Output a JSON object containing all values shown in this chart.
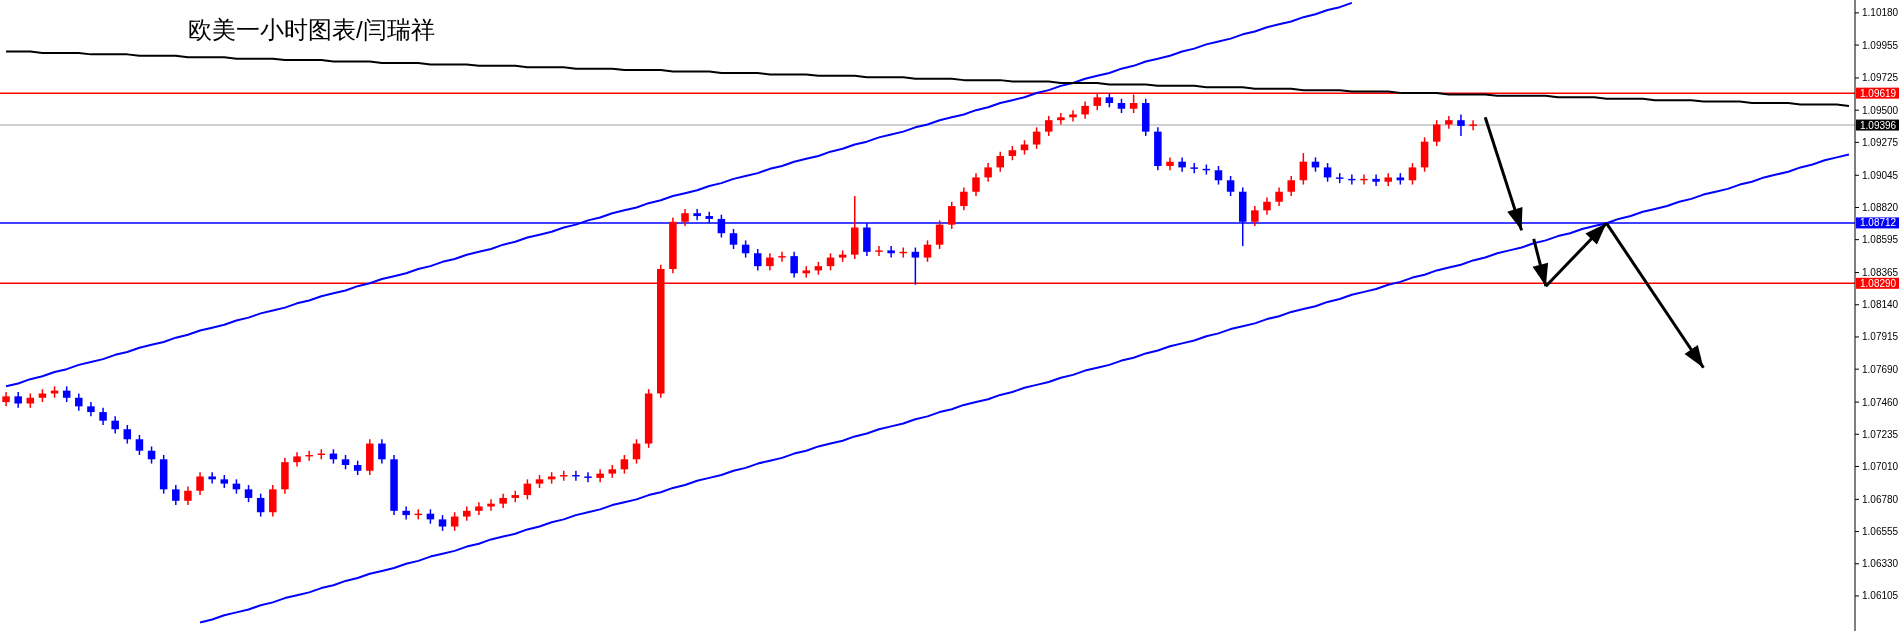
{
  "chart_data": {
    "type": "candlestick",
    "title": "欧美一小时图表/闫瑞祥",
    "categories": [
      null,
      null,
      null,
      null,
      null,
      null,
      null,
      null,
      null,
      null,
      null,
      null,
      null,
      null,
      null,
      null,
      null,
      null,
      null,
      null,
      null,
      null,
      null,
      null,
      null,
      null,
      null,
      null,
      null,
      null,
      null,
      null,
      null,
      null,
      null,
      null,
      null,
      null,
      null,
      null,
      null,
      null,
      null,
      null,
      null,
      null,
      null,
      null,
      null,
      null,
      null,
      null,
      null,
      null,
      null,
      null,
      null,
      null,
      null,
      null,
      null,
      null,
      null,
      null,
      null,
      null,
      null,
      null,
      null,
      null,
      null,
      null,
      null,
      null,
      null,
      null,
      null,
      null,
      null,
      null,
      null,
      null,
      null,
      null,
      null,
      null,
      null,
      null,
      null,
      null,
      null,
      null,
      null,
      null,
      null,
      null,
      null,
      null,
      null,
      null,
      null,
      null,
      null,
      null,
      null,
      null,
      null,
      null,
      null,
      null,
      null,
      null,
      null,
      null,
      null,
      null,
      null,
      null,
      null,
      null,
      null,
      null,
      null,
      null,
      null,
      null,
      null,
      null,
      null,
      null,
      null,
      null,
      null,
      null,
      null,
      null,
      null,
      null,
      null,
      null,
      null,
      null,
      null,
      null,
      null,
      null,
      null,
      null,
      null,
      null,
      null,
      null,
      null
    ],
    "ohlc": [
      [
        1.0746,
        1.0753,
        1.0743,
        1.075
      ],
      [
        1.075,
        1.0753,
        1.0742,
        1.0745
      ],
      [
        1.0745,
        1.0752,
        1.0742,
        1.0749
      ],
      [
        1.0749,
        1.0755,
        1.0746,
        1.0752
      ],
      [
        1.0752,
        1.0757,
        1.0749,
        1.0754
      ],
      [
        1.0754,
        1.0757,
        1.0746,
        1.0749
      ],
      [
        1.0749,
        1.0752,
        1.074,
        1.0743
      ],
      [
        1.0743,
        1.0746,
        1.0736,
        1.0739
      ],
      [
        1.0739,
        1.0742,
        1.073,
        1.0733
      ],
      [
        1.0733,
        1.0736,
        1.0724,
        1.0727
      ],
      [
        1.0727,
        1.073,
        1.0717,
        1.072
      ],
      [
        1.072,
        1.0723,
        1.0709,
        1.0712
      ],
      [
        1.0712,
        1.0715,
        1.0703,
        1.0706
      ],
      [
        1.0706,
        1.0709,
        1.0682,
        1.0685
      ],
      [
        1.0685,
        1.0688,
        1.0674,
        1.0677
      ],
      [
        1.0677,
        1.0687,
        1.0674,
        1.0684
      ],
      [
        1.0684,
        1.0697,
        1.0681,
        1.0694
      ],
      [
        1.0694,
        1.0697,
        1.0689,
        1.0692
      ],
      [
        1.0692,
        1.0695,
        1.0686,
        1.0689
      ],
      [
        1.0689,
        1.0692,
        1.0682,
        1.0685
      ],
      [
        1.0685,
        1.0688,
        1.0676,
        1.0679
      ],
      [
        1.0679,
        1.0682,
        1.0666,
        1.0669
      ],
      [
        1.0669,
        1.0688,
        1.0666,
        1.0685
      ],
      [
        1.0685,
        1.0707,
        1.0682,
        1.0704
      ],
      [
        1.0704,
        1.0711,
        1.0701,
        1.0708
      ],
      [
        1.0708,
        1.0712,
        1.0705,
        1.0709
      ],
      [
        1.0709,
        1.0713,
        1.0706,
        1.071
      ],
      [
        1.071,
        1.0713,
        1.0703,
        1.0706
      ],
      [
        1.0706,
        1.0709,
        1.0699,
        1.0702
      ],
      [
        1.0702,
        1.0705,
        1.0695,
        1.0698
      ],
      [
        1.0698,
        1.072,
        1.0695,
        1.0717
      ],
      [
        1.0717,
        1.072,
        1.0703,
        1.0706
      ],
      [
        1.0706,
        1.0709,
        1.0667,
        1.067
      ],
      [
        1.067,
        1.0673,
        1.0664,
        1.0667
      ],
      [
        1.0667,
        1.0671,
        1.0664,
        1.0668
      ],
      [
        1.0668,
        1.0671,
        1.0661,
        1.0664
      ],
      [
        1.0664,
        1.0667,
        1.0656,
        1.0659
      ],
      [
        1.0659,
        1.0669,
        1.0656,
        1.0666
      ],
      [
        1.0666,
        1.0673,
        1.0663,
        1.067
      ],
      [
        1.067,
        1.0676,
        1.0667,
        1.0673
      ],
      [
        1.0673,
        1.0678,
        1.067,
        1.0675
      ],
      [
        1.0675,
        1.0682,
        1.0672,
        1.0679
      ],
      [
        1.0679,
        1.0684,
        1.0676,
        1.0681
      ],
      [
        1.0681,
        1.0692,
        1.0678,
        1.0689
      ],
      [
        1.0689,
        1.0695,
        1.0686,
        1.0692
      ],
      [
        1.0692,
        1.0697,
        1.0689,
        1.0694
      ],
      [
        1.0694,
        1.0698,
        1.0691,
        1.0695
      ],
      [
        1.0695,
        1.0698,
        1.0691,
        1.0694
      ],
      [
        1.0694,
        1.0697,
        1.069,
        1.0693
      ],
      [
        1.0693,
        1.0699,
        1.069,
        1.0696
      ],
      [
        1.0696,
        1.0702,
        1.0693,
        1.0699
      ],
      [
        1.0699,
        1.0709,
        1.0696,
        1.0706
      ],
      [
        1.0706,
        1.072,
        1.0703,
        1.0717
      ],
      [
        1.0717,
        1.0755,
        1.0714,
        1.0752
      ],
      [
        1.0752,
        1.0842,
        1.0749,
        1.0839
      ],
      [
        1.0839,
        1.0875,
        1.0836,
        1.0872
      ],
      [
        1.0872,
        1.0881,
        1.0869,
        1.0878
      ],
      [
        1.0878,
        1.0881,
        1.0873,
        1.0876
      ],
      [
        1.0876,
        1.0879,
        1.0871,
        1.0874
      ],
      [
        1.0874,
        1.0877,
        1.0861,
        1.0864
      ],
      [
        1.0864,
        1.0867,
        1.0853,
        1.0856
      ],
      [
        1.0856,
        1.0859,
        1.0847,
        1.085
      ],
      [
        1.085,
        1.0853,
        1.0838,
        1.0841
      ],
      [
        1.0841,
        1.085,
        1.0838,
        1.0847
      ],
      [
        1.0847,
        1.0851,
        1.0844,
        1.0848
      ],
      [
        1.0848,
        1.0851,
        1.0833,
        1.0836
      ],
      [
        1.0836,
        1.0841,
        1.0833,
        1.0838
      ],
      [
        1.0838,
        1.0844,
        1.0835,
        1.0841
      ],
      [
        1.0841,
        1.085,
        1.0838,
        1.0847
      ],
      [
        1.0847,
        1.0852,
        1.0844,
        1.0849
      ],
      [
        1.0849,
        1.089,
        1.0846,
        1.0868
      ],
      [
        1.0868,
        1.0871,
        1.0848,
        1.0851
      ],
      [
        1.0851,
        1.0855,
        1.0848,
        1.0852
      ],
      [
        1.0852,
        1.0855,
        1.0847,
        1.085
      ],
      [
        1.085,
        1.0854,
        1.0847,
        1.0851
      ],
      [
        1.0851,
        1.0854,
        1.0828,
        1.0847
      ],
      [
        1.0847,
        1.0859,
        1.0844,
        1.0856
      ],
      [
        1.0856,
        1.0873,
        1.0853,
        1.087
      ],
      [
        1.087,
        1.0886,
        1.0867,
        1.0883
      ],
      [
        1.0883,
        1.0896,
        1.088,
        1.0893
      ],
      [
        1.0893,
        1.0906,
        1.089,
        1.0903
      ],
      [
        1.0903,
        1.0913,
        1.09,
        1.091
      ],
      [
        1.091,
        1.0921,
        1.0907,
        1.0918
      ],
      [
        1.0918,
        1.0925,
        1.0915,
        1.0922
      ],
      [
        1.0922,
        1.0929,
        1.0919,
        1.0926
      ],
      [
        1.0926,
        1.0938,
        1.0923,
        1.0935
      ],
      [
        1.0935,
        1.0946,
        1.0932,
        1.0943
      ],
      [
        1.0943,
        1.0948,
        1.094,
        1.0945
      ],
      [
        1.0945,
        1.095,
        1.0942,
        1.0947
      ],
      [
        1.0947,
        1.0956,
        1.0944,
        1.0953
      ],
      [
        1.0953,
        1.0962,
        1.095,
        1.0959
      ],
      [
        1.0959,
        1.0962,
        1.0952,
        1.0955
      ],
      [
        1.0955,
        1.0958,
        1.0948,
        1.0951
      ],
      [
        1.0951,
        1.0961,
        1.0948,
        1.0955
      ],
      [
        1.0955,
        1.0958,
        1.0932,
        1.0935
      ],
      [
        1.0935,
        1.0938,
        1.0908,
        1.0911
      ],
      [
        1.0911,
        1.0917,
        1.0908,
        1.0914
      ],
      [
        1.0914,
        1.0917,
        1.0907,
        1.091
      ],
      [
        1.091,
        1.0913,
        1.0906,
        1.0909
      ],
      [
        1.0909,
        1.0912,
        1.0905,
        1.0908
      ],
      [
        1.0908,
        1.0911,
        1.0898,
        1.0901
      ],
      [
        1.0901,
        1.0904,
        1.089,
        1.0893
      ],
      [
        1.0893,
        1.0896,
        1.0855,
        1.0872
      ],
      [
        1.0872,
        1.0883,
        1.0869,
        1.088
      ],
      [
        1.088,
        1.0889,
        1.0877,
        1.0886
      ],
      [
        1.0886,
        1.0896,
        1.0883,
        1.0893
      ],
      [
        1.0893,
        1.0904,
        1.089,
        1.0901
      ],
      [
        1.0901,
        1.092,
        1.0898,
        1.0914
      ],
      [
        1.0914,
        1.0917,
        1.0907,
        1.091
      ],
      [
        1.091,
        1.0913,
        1.09,
        1.0903
      ],
      [
        1.0903,
        1.0906,
        1.0899,
        1.0902
      ],
      [
        1.0902,
        1.0905,
        1.0898,
        1.0901
      ],
      [
        1.0901,
        1.0905,
        1.0898,
        1.0902
      ],
      [
        1.0902,
        1.0905,
        1.0897,
        1.09
      ],
      [
        1.09,
        1.0906,
        1.0897,
        1.0903
      ],
      [
        1.0903,
        1.0906,
        1.0898,
        1.0901
      ],
      [
        1.0901,
        1.0913,
        1.0898,
        1.091
      ],
      [
        1.091,
        1.0931,
        1.0907,
        1.0928
      ],
      [
        1.0928,
        1.0943,
        1.0925,
        1.094
      ],
      [
        1.094,
        1.0946,
        1.0937,
        1.0943
      ],
      [
        1.0943,
        1.0947,
        1.0932,
        1.0939
      ],
      [
        1.0939,
        1.0943,
        1.0936,
        1.094
      ],
      null,
      null,
      null,
      null,
      null,
      null,
      null,
      null,
      null,
      null,
      null,
      null,
      null,
      null,
      null,
      null,
      null,
      null,
      null,
      null,
      null,
      null,
      null,
      null,
      null,
      null,
      null,
      null,
      null,
      null,
      null
    ],
    "colors": [
      "#ff0000",
      "#0000ff",
      "#ff0000",
      "#ff0000",
      "#ff0000",
      "#0000ff",
      "#0000ff",
      "#0000ff",
      "#0000ff",
      "#0000ff",
      "#0000ff",
      "#0000ff",
      "#0000ff",
      "#0000ff",
      "#0000ff",
      "#ff0000",
      "#ff0000",
      "#0000ff",
      "#0000ff",
      "#0000ff",
      "#0000ff",
      "#0000ff",
      "#ff0000",
      "#ff0000",
      "#ff0000",
      "#ff0000",
      "#ff0000",
      "#0000ff",
      "#0000ff",
      "#0000ff",
      "#ff0000",
      "#0000ff",
      "#0000ff",
      "#0000ff",
      "#ff0000",
      "#0000ff",
      "#0000ff",
      "#ff0000",
      "#ff0000",
      "#ff0000",
      "#ff0000",
      "#ff0000",
      "#ff0000",
      "#ff0000",
      "#ff0000",
      "#ff0000",
      "#ff0000",
      "#0000ff",
      "#0000ff",
      "#ff0000",
      "#ff0000",
      "#ff0000",
      "#ff0000",
      "#ff0000",
      "#ff0000",
      "#ff0000",
      "#ff0000",
      "#0000ff",
      "#0000ff",
      "#0000ff",
      "#0000ff",
      "#0000ff",
      "#0000ff",
      "#ff0000",
      "#ff0000",
      "#0000ff",
      "#ff0000",
      "#ff0000",
      "#ff0000",
      "#ff0000",
      "#ff0000",
      "#0000ff",
      "#ff0000",
      "#0000ff",
      "#ff0000",
      "#0000ff",
      "#ff0000",
      "#ff0000",
      "#ff0000",
      "#ff0000",
      "#ff0000",
      "#ff0000",
      "#ff0000",
      "#ff0000",
      "#ff0000",
      "#ff0000",
      "#ff0000",
      "#ff0000",
      "#ff0000",
      "#ff0000",
      "#ff0000",
      "#0000ff",
      "#0000ff",
      "#ff0000",
      "#0000ff",
      "#0000ff",
      "#ff0000",
      "#0000ff",
      "#0000ff",
      "#0000ff",
      "#0000ff",
      "#0000ff",
      "#0000ff",
      "#ff0000",
      "#ff0000",
      "#ff0000",
      "#ff0000",
      "#ff0000",
      "#0000ff",
      "#0000ff",
      "#0000ff",
      "#0000ff",
      "#ff0000",
      "#0000ff",
      "#ff0000",
      "#0000ff",
      "#ff0000",
      "#ff0000",
      "#ff0000",
      "#ff0000",
      "#0000ff",
      "#ff0000",
      null,
      null,
      null,
      null,
      null,
      null,
      null,
      null,
      null,
      null,
      null,
      null,
      null,
      null,
      null,
      null,
      null,
      null,
      null,
      null,
      null,
      null,
      null,
      null,
      null,
      null,
      null,
      null,
      null,
      null,
      null
    ],
    "series": [
      {
        "type": "line",
        "color": "#0000ff",
        "values": [
          1.0757,
          1.0759,
          1.0762,
          1.0764,
          1.0767,
          1.0769,
          1.0772,
          1.0774,
          1.0776,
          1.0779,
          1.0781,
          1.0784,
          1.0786,
          1.0788,
          1.0791,
          1.0793,
          1.0796,
          1.0798,
          1.08,
          1.0803,
          1.0805,
          1.0808,
          1.081,
          1.0812,
          1.0815,
          1.0817,
          1.082,
          1.0822,
          1.0824,
          1.0827,
          1.0829,
          1.0832,
          1.0834,
          1.0836,
          1.0839,
          1.0841,
          1.0844,
          1.0846,
          1.0849,
          1.0851,
          1.0853,
          1.0856,
          1.0858,
          1.0861,
          1.0863,
          1.0865,
          1.0868,
          1.087,
          1.0873,
          1.0875,
          1.0878,
          1.088,
          1.0882,
          1.0885,
          1.0887,
          1.089,
          1.0892,
          1.0894,
          1.0897,
          1.0899,
          1.0902,
          1.0904,
          1.0906,
          1.0909,
          1.0911,
          1.0914,
          1.0916,
          1.0918,
          1.0921,
          1.0923,
          1.0926,
          1.0928,
          1.0931,
          1.0933,
          1.0935,
          1.0938,
          1.094,
          1.0943,
          1.0945,
          1.0947,
          1.095,
          1.0952,
          1.0955,
          1.0957,
          1.0959,
          1.0962,
          1.0964,
          1.0967,
          1.0969,
          1.0972,
          1.0974,
          1.0976,
          1.0979,
          1.0981,
          1.0984,
          1.0986,
          1.0988,
          1.0991,
          1.0993,
          1.0996,
          1.0998,
          1.1,
          1.1003,
          1.1005,
          1.1008,
          1.101,
          1.1012,
          1.1015,
          1.1017,
          1.102,
          1.1022,
          1.1025,
          null,
          null,
          null,
          null,
          null,
          null,
          null,
          null,
          null,
          null,
          null,
          null,
          null,
          null,
          null,
          null,
          null,
          null,
          null,
          null,
          null,
          null,
          null,
          null,
          null,
          null,
          null,
          null,
          null,
          null,
          null,
          null,
          null,
          null,
          null,
          null,
          null,
          null,
          null,
          null,
          null
        ]
      },
      {
        "type": "line",
        "color": "#0000ff",
        "values": [
          null,
          null,
          null,
          null,
          null,
          null,
          null,
          null,
          null,
          null,
          null,
          null,
          null,
          null,
          null,
          null,
          1.0592,
          1.0594,
          1.0597,
          1.0599,
          1.0601,
          1.0604,
          1.0606,
          1.0609,
          1.0611,
          1.0613,
          1.0616,
          1.0618,
          1.0621,
          1.0623,
          1.0626,
          1.0628,
          1.063,
          1.0633,
          1.0635,
          1.0638,
          1.064,
          1.0642,
          1.0645,
          1.0647,
          1.065,
          1.0652,
          1.0654,
          1.0657,
          1.0659,
          1.0662,
          1.0664,
          1.0667,
          1.0669,
          1.0671,
          1.0674,
          1.0676,
          1.0678,
          1.0681,
          1.0683,
          1.0686,
          1.0688,
          1.0691,
          1.0693,
          1.0695,
          1.0698,
          1.07,
          1.0703,
          1.0705,
          1.0707,
          1.071,
          1.0712,
          1.0715,
          1.0717,
          1.0719,
          1.0722,
          1.0724,
          1.0727,
          1.0729,
          1.0731,
          1.0734,
          1.0736,
          1.0739,
          1.0741,
          1.0744,
          1.0746,
          1.0748,
          1.0751,
          1.0753,
          1.0756,
          1.0758,
          1.076,
          1.0763,
          1.0765,
          1.0768,
          1.077,
          1.0772,
          1.0775,
          1.0777,
          1.078,
          1.0782,
          1.0785,
          1.0787,
          1.0789,
          1.0792,
          1.0794,
          1.0797,
          1.0799,
          1.0801,
          1.0804,
          1.0806,
          1.0809,
          1.0811,
          1.0813,
          1.0816,
          1.0818,
          1.0821,
          1.0823,
          1.0825,
          1.0828,
          1.083,
          1.0833,
          1.0835,
          1.0838,
          1.084,
          1.0842,
          1.0845,
          1.0847,
          1.085,
          1.0852,
          1.0854,
          1.0857,
          1.0859,
          1.0862,
          1.0864,
          1.0867,
          1.0869,
          1.0871,
          1.0874,
          1.0876,
          1.0879,
          1.0881,
          1.0883,
          1.0886,
          1.0888,
          1.0891,
          1.0893,
          1.0895,
          1.0898,
          1.09,
          1.0903,
          1.0905,
          1.0907,
          1.091,
          1.0912,
          1.0915,
          1.0917,
          1.0919
        ]
      },
      {
        "type": "line",
        "color": "#000000",
        "values": [
          1.0991,
          1.0991,
          1.0991,
          1.099,
          1.099,
          1.099,
          1.099,
          1.0989,
          1.0989,
          1.0989,
          1.0989,
          1.0988,
          1.0988,
          1.0988,
          1.0988,
          1.0987,
          1.0987,
          1.0987,
          1.0987,
          1.0986,
          1.0986,
          1.0986,
          1.0986,
          1.0985,
          1.0985,
          1.0985,
          1.0985,
          1.0984,
          1.0984,
          1.0984,
          1.0984,
          1.0983,
          1.0983,
          1.0983,
          1.0983,
          1.0982,
          1.0982,
          1.0982,
          1.0982,
          1.0981,
          1.0981,
          1.0981,
          1.0981,
          1.098,
          1.098,
          1.098,
          1.098,
          1.0979,
          1.0979,
          1.0979,
          1.0979,
          1.0978,
          1.0978,
          1.0978,
          1.0978,
          1.0977,
          1.0977,
          1.0977,
          1.0977,
          1.0976,
          1.0976,
          1.0976,
          1.0976,
          1.0975,
          1.0975,
          1.0975,
          1.0975,
          1.0974,
          1.0974,
          1.0974,
          1.0974,
          1.0973,
          1.0973,
          1.0973,
          1.0973,
          1.0972,
          1.0972,
          1.0972,
          1.0972,
          1.0971,
          1.0971,
          1.0971,
          1.0971,
          1.097,
          1.097,
          1.097,
          1.097,
          1.0969,
          1.0969,
          1.0969,
          1.0969,
          1.0968,
          1.0968,
          1.0968,
          1.0968,
          1.0967,
          1.0967,
          1.0967,
          1.0967,
          1.0966,
          1.0966,
          1.0966,
          1.0966,
          1.0965,
          1.0965,
          1.0965,
          1.0965,
          1.0964,
          1.0964,
          1.0964,
          1.0964,
          1.0963,
          1.0963,
          1.0963,
          1.0963,
          1.0962,
          1.0962,
          1.0962,
          1.0962,
          1.0961,
          1.0961,
          1.0961,
          1.0961,
          1.096,
          1.096,
          1.096,
          1.096,
          1.096,
          1.0959,
          1.0959,
          1.0959,
          1.0959,
          1.0958,
          1.0958,
          1.0958,
          1.0958,
          1.0957,
          1.0957,
          1.0957,
          1.0957,
          1.0956,
          1.0956,
          1.0956,
          1.0956,
          1.0955,
          1.0955,
          1.0955,
          1.0955,
          1.0954,
          1.0954,
          1.0954,
          1.0954,
          1.0953
        ]
      },
      {
        "type": "line",
        "color": "#000000",
        "values": [
          null,
          null,
          null,
          null,
          null,
          null,
          null,
          null,
          null,
          null,
          null,
          null,
          null,
          null,
          null,
          null,
          null,
          null,
          null,
          null,
          null,
          null,
          null,
          null,
          null,
          null,
          null,
          null,
          null,
          null,
          null,
          null,
          null,
          null,
          null,
          null,
          null,
          null,
          null,
          null,
          null,
          null,
          null,
          null,
          null,
          null,
          null,
          null,
          null,
          null,
          null,
          null,
          null,
          null,
          null,
          null,
          null,
          null,
          null,
          null,
          null,
          null,
          null,
          null,
          null,
          null,
          null,
          null,
          null,
          null,
          null,
          null,
          null,
          null,
          null,
          null,
          null,
          null,
          null,
          null,
          null,
          null,
          null,
          null,
          null,
          null,
          null,
          null,
          null,
          null,
          null,
          null,
          null,
          null,
          null,
          null,
          null,
          null,
          null,
          null,
          null,
          null,
          null,
          null,
          null,
          null,
          null,
          null,
          null,
          null,
          null,
          null,
          null,
          null,
          null,
          null,
          null,
          null,
          null,
          null,
          null,
          null,
          1.0945,
          1.0919,
          1.0892,
          1.0866,
          null,
          null,
          null,
          null,
          null,
          null,
          null,
          null,
          null,
          null,
          null,
          null,
          null,
          null,
          null,
          null,
          null,
          null,
          null,
          null,
          null,
          null,
          null,
          null,
          null,
          null,
          null
        ]
      },
      {
        "type": "line",
        "color": "#000000",
        "values": [
          null,
          null,
          null,
          null,
          null,
          null,
          null,
          null,
          null,
          null,
          null,
          null,
          null,
          null,
          null,
          null,
          null,
          null,
          null,
          null,
          null,
          null,
          null,
          null,
          null,
          null,
          null,
          null,
          null,
          null,
          null,
          null,
          null,
          null,
          null,
          null,
          null,
          null,
          null,
          null,
          null,
          null,
          null,
          null,
          null,
          null,
          null,
          null,
          null,
          null,
          null,
          null,
          null,
          null,
          null,
          null,
          null,
          null,
          null,
          null,
          null,
          null,
          null,
          null,
          null,
          null,
          null,
          null,
          null,
          null,
          null,
          null,
          null,
          null,
          null,
          null,
          null,
          null,
          null,
          null,
          null,
          null,
          null,
          null,
          null,
          null,
          null,
          null,
          null,
          null,
          null,
          null,
          null,
          null,
          null,
          null,
          null,
          null,
          null,
          null,
          null,
          null,
          null,
          null,
          null,
          null,
          null,
          null,
          null,
          null,
          null,
          null,
          null,
          null,
          null,
          null,
          null,
          null,
          null,
          null,
          null,
          null,
          null,
          null,
          null,
          null,
          1.086,
          1.0827,
          null,
          null,
          null,
          null,
          null,
          null,
          null,
          null,
          null,
          null,
          null,
          null,
          null,
          null,
          null,
          null,
          null,
          null,
          null,
          null,
          null,
          null,
          null,
          null,
          null
        ]
      },
      {
        "type": "line",
        "color": "#000000",
        "values": [
          null,
          null,
          null,
          null,
          null,
          null,
          null,
          null,
          null,
          null,
          null,
          null,
          null,
          null,
          null,
          null,
          null,
          null,
          null,
          null,
          null,
          null,
          null,
          null,
          null,
          null,
          null,
          null,
          null,
          null,
          null,
          null,
          null,
          null,
          null,
          null,
          null,
          null,
          null,
          null,
          null,
          null,
          null,
          null,
          null,
          null,
          null,
          null,
          null,
          null,
          null,
          null,
          null,
          null,
          null,
          null,
          null,
          null,
          null,
          null,
          null,
          null,
          null,
          null,
          null,
          null,
          null,
          null,
          null,
          null,
          null,
          null,
          null,
          null,
          null,
          null,
          null,
          null,
          null,
          null,
          null,
          null,
          null,
          null,
          null,
          null,
          null,
          null,
          null,
          null,
          null,
          null,
          null,
          null,
          null,
          null,
          null,
          null,
          null,
          null,
          null,
          null,
          null,
          null,
          null,
          null,
          null,
          null,
          null,
          null,
          null,
          null,
          null,
          null,
          null,
          null,
          null,
          null,
          null,
          null,
          null,
          null,
          null,
          null,
          null,
          null,
          null,
          1.0827,
          1.0836,
          1.0845,
          1.0853,
          1.0862,
          1.0871,
          null,
          null,
          null,
          null,
          null,
          null,
          null,
          null,
          null,
          null,
          null,
          null,
          null,
          null,
          null,
          null,
          null,
          null,
          null,
          null
        ]
      },
      {
        "type": "line",
        "color": "#000000",
        "values": [
          null,
          null,
          null,
          null,
          null,
          null,
          null,
          null,
          null,
          null,
          null,
          null,
          null,
          null,
          null,
          null,
          null,
          null,
          null,
          null,
          null,
          null,
          null,
          null,
          null,
          null,
          null,
          null,
          null,
          null,
          null,
          null,
          null,
          null,
          null,
          null,
          null,
          null,
          null,
          null,
          null,
          null,
          null,
          null,
          null,
          null,
          null,
          null,
          null,
          null,
          null,
          null,
          null,
          null,
          null,
          null,
          null,
          null,
          null,
          null,
          null,
          null,
          null,
          null,
          null,
          null,
          null,
          null,
          null,
          null,
          null,
          null,
          null,
          null,
          null,
          null,
          null,
          null,
          null,
          null,
          null,
          null,
          null,
          null,
          null,
          null,
          null,
          null,
          null,
          null,
          null,
          null,
          null,
          null,
          null,
          null,
          null,
          null,
          null,
          null,
          null,
          null,
          null,
          null,
          null,
          null,
          null,
          null,
          null,
          null,
          null,
          null,
          null,
          null,
          null,
          null,
          null,
          null,
          null,
          null,
          null,
          null,
          null,
          null,
          null,
          null,
          null,
          null,
          null,
          null,
          null,
          null,
          1.0871,
          1.0858,
          1.0846,
          1.0833,
          1.082,
          1.0808,
          1.0795,
          1.0783,
          1.077,
          null,
          null,
          null,
          null,
          null,
          null,
          null,
          null,
          null,
          null,
          null,
          null
        ]
      }
    ],
    "ylim": [
      1.0586,
      1.1027
    ],
    "yticks": [
      {
        "value": 1.1018,
        "label": "1.10180"
      },
      1.09955,
      1.09725,
      {
        "value": 1.095,
        "label": "1.09500"
      },
      1.09275,
      1.09045,
      {
        "value": 1.0882,
        "label": "1.08820"
      },
      1.08595,
      1.08365,
      {
        "value": 1.0814,
        "label": "1.08140"
      },
      1.07915,
      {
        "value": 1.0769,
        "label": "1.07690"
      },
      {
        "value": 1.0746,
        "label": "1.07460"
      },
      1.07235,
      {
        "value": 1.0701,
        "label": "1.07010"
      },
      {
        "value": 1.0678,
        "label": "1.06780"
      },
      1.06555,
      {
        "value": 1.0633,
        "label": "1.06330"
      },
      1.06105
    ],
    "ref_lines": [
      {
        "axis": "y",
        "value": 1.09619,
        "label": "1.09619",
        "color": "#ff0000"
      },
      {
        "axis": "y",
        "value": 1.09396,
        "label": "1.09396",
        "color": "#c0c0c0"
      },
      {
        "axis": "y",
        "value": 1.08712,
        "label": "1.08712",
        "color": "#0000ff"
      },
      {
        "axis": "y",
        "value": 1.0829,
        "label": "1.08290",
        "color": "#ff0000"
      }
    ]
  }
}
